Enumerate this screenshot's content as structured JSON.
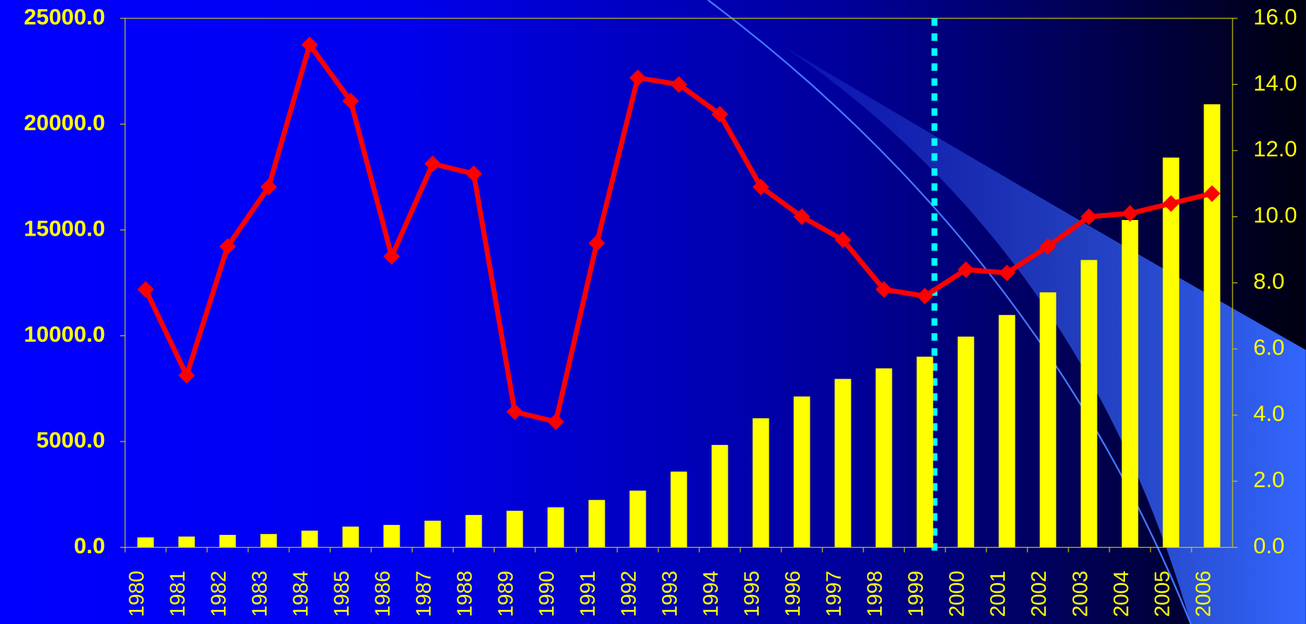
{
  "chart_data": {
    "type": "combo",
    "categories": [
      "1980",
      "1981",
      "1982",
      "1983",
      "1984",
      "1985",
      "1986",
      "1987",
      "1988",
      "1989",
      "1990",
      "1991",
      "1992",
      "1993",
      "1994",
      "1995",
      "1996",
      "1997",
      "1998",
      "1999",
      "2000",
      "2001",
      "2002",
      "2003",
      "2004",
      "2005",
      "2006"
    ],
    "series": [
      {
        "type": "bar",
        "color": "#ffff00",
        "values": [
          470,
          510,
          590,
          630,
          790,
          980,
          1060,
          1260,
          1530,
          1730,
          1890,
          2240,
          2680,
          3580,
          4840,
          6100,
          7130,
          7960,
          8460,
          9010,
          9960,
          10980,
          12050,
          13580,
          15470,
          18420,
          20940
        ]
      },
      {
        "type": "line",
        "axis": "y2",
        "color": "#ff0000",
        "values": [
          7.8,
          5.2,
          9.1,
          10.9,
          15.2,
          13.5,
          8.8,
          11.6,
          11.3,
          4.1,
          3.8,
          9.2,
          14.2,
          14.0,
          13.1,
          10.9,
          10.0,
          9.3,
          7.8,
          7.6,
          8.4,
          8.3,
          9.1,
          10.0,
          10.1,
          10.4,
          10.7
        ]
      }
    ],
    "ylim": [
      0,
      25000
    ],
    "yticks": [
      {
        "value": 0,
        "label": "0.0"
      },
      {
        "value": 5000,
        "label": "5000.0"
      },
      {
        "value": 10000,
        "label": "10000.0"
      },
      {
        "value": 15000,
        "label": "15000.0"
      },
      {
        "value": 20000,
        "label": "20000.0"
      },
      {
        "value": 25000,
        "label": "25000.0"
      }
    ],
    "y2lim": [
      0,
      16
    ],
    "y2ticks": [
      {
        "value": 0,
        "label": "0.0"
      },
      {
        "value": 2,
        "label": "2.0"
      },
      {
        "value": 4,
        "label": "4.0"
      },
      {
        "value": 6,
        "label": "6.0"
      },
      {
        "value": 8,
        "label": "8.0"
      },
      {
        "value": 10,
        "label": "10.0"
      },
      {
        "value": 12,
        "label": "12.0"
      },
      {
        "value": 14,
        "label": "14.0"
      },
      {
        "value": 16,
        "label": "16.0"
      }
    ]
  }
}
